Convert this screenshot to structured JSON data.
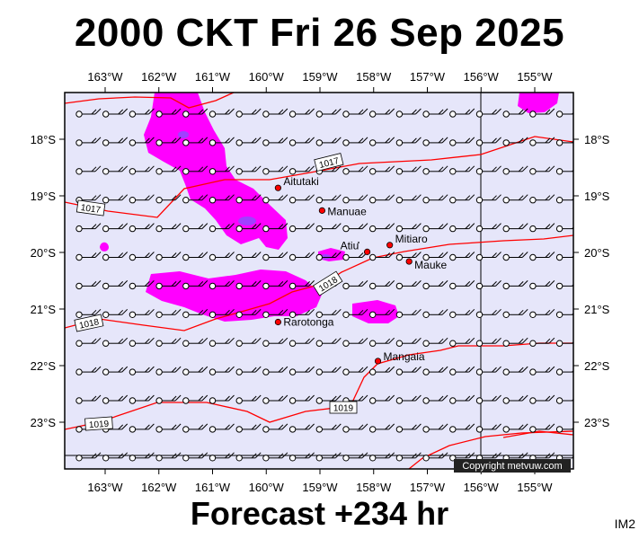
{
  "title": "2000 CKT Fri 26 Sep 2025",
  "footer": "Forecast +234 hr",
  "model_label": "IM2",
  "copyright": "Copyright metvuw.com",
  "colors": {
    "background": "#e6e6fa",
    "rain": "#ff00ff",
    "rain_heavy": "#a040ff",
    "isobar": "#ff0000",
    "place_dot": "#ff0000"
  },
  "axes": {
    "lon_labels": [
      "163°W",
      "162°W",
      "161°W",
      "160°W",
      "159°W",
      "158°W",
      "157°W",
      "156°W",
      "155°W"
    ],
    "lat_labels": [
      "18°S",
      "19°S",
      "20°S",
      "21°S",
      "22°S",
      "23°S"
    ]
  },
  "places": [
    {
      "name": "Aitutaki",
      "lon": -159.78,
      "lat": -18.86
    },
    {
      "name": "Manuae",
      "lon": -158.96,
      "lat": -19.26
    },
    {
      "name": "Atiu",
      "lon": -158.12,
      "lat": -19.99
    },
    {
      "name": "Mitiaro",
      "lon": -157.7,
      "lat": -19.87
    },
    {
      "name": "Mauke",
      "lon": -157.34,
      "lat": -20.16
    },
    {
      "name": "Rarotonga",
      "lon": -159.78,
      "lat": -21.23
    },
    {
      "name": "Mangaia",
      "lon": -157.92,
      "lat": -21.92
    }
  ],
  "isobar_labels": [
    "1017",
    "1017",
    "1018",
    "1018",
    "1019",
    "1019"
  ]
}
